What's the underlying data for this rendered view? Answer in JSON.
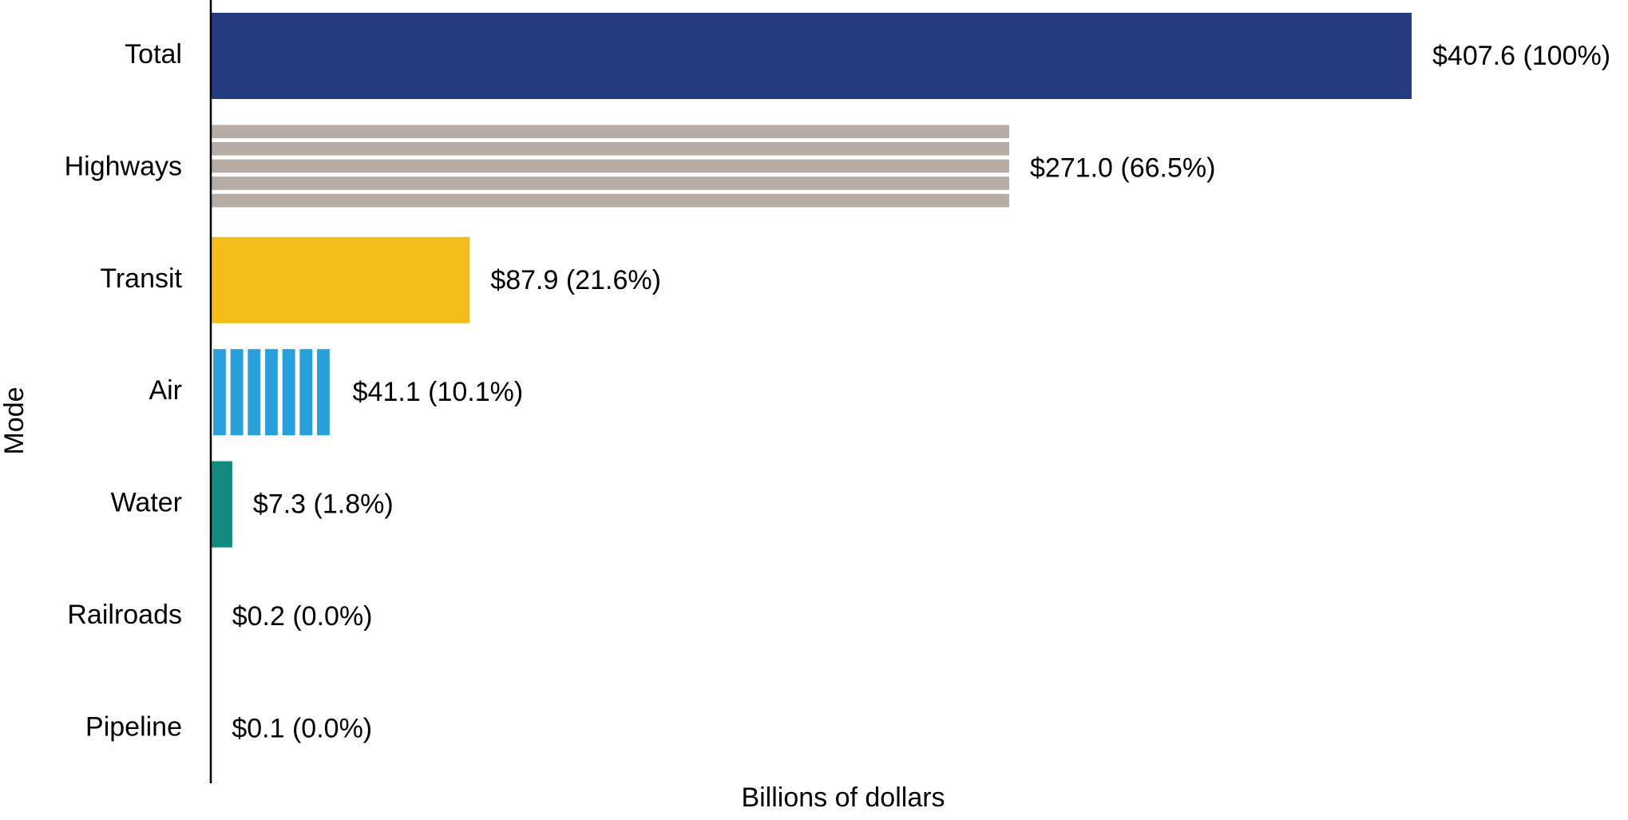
{
  "chart_data": {
    "type": "hbar",
    "y_label": "Mode",
    "x_label": "Billions of dollars",
    "categories": [
      "Total",
      "Highways",
      "Transit",
      "Air",
      "Water",
      "Railroads",
      "Pipeline"
    ],
    "values": [
      407.6,
      271.0,
      87.9,
      41.1,
      7.3,
      0.2,
      0.1
    ],
    "value_labels": [
      "$407.6 (100%)",
      "$271.0 (66.5%)",
      "$87.9 (21.6%)",
      "$41.1 (10.1%)",
      "$7.3 (1.8%)",
      "$0.2 (0.0%)",
      "$0.1 (0.0%)"
    ],
    "colors": [
      "#253b80",
      "#b7aca4",
      "#f4bd19",
      "#27a0dc",
      "#138a80",
      "#138a80",
      "#138a80"
    ],
    "patterns": [
      "solid",
      "horizontal-stripes",
      "solid",
      "vertical-stripes",
      "solid",
      "solid",
      "solid"
    ],
    "xlim": [
      0,
      407.6
    ]
  }
}
